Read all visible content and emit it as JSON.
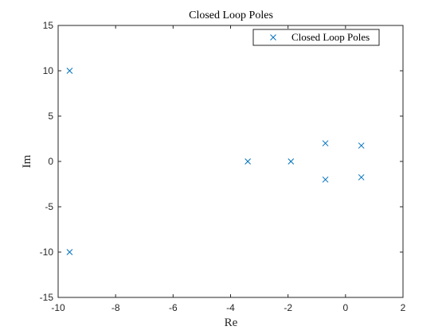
{
  "chart_data": {
    "type": "scatter",
    "title": "Closed Loop Poles",
    "xlabel": "Re",
    "ylabel": "Im",
    "xlim": [
      -10,
      2
    ],
    "ylim": [
      -15,
      15
    ],
    "xticks": [
      -10,
      -8,
      -6,
      -4,
      -2,
      0,
      2
    ],
    "yticks": [
      -15,
      -10,
      -5,
      0,
      5,
      10,
      15
    ],
    "xtick_labels": [
      "-10",
      "-8",
      "-6",
      "-4",
      "-2",
      "0",
      "2"
    ],
    "ytick_labels": [
      "-15",
      "-10",
      "-5",
      "0",
      "5",
      "10",
      "15"
    ],
    "grid": false,
    "legend_position": "top-right",
    "marker": "x",
    "series": [
      {
        "name": "Closed Loop Poles",
        "color": "#0072BD",
        "points": [
          {
            "x": -9.6,
            "y": 10
          },
          {
            "x": -9.6,
            "y": -10
          },
          {
            "x": -3.4,
            "y": 0
          },
          {
            "x": -1.9,
            "y": 0
          },
          {
            "x": -0.7,
            "y": 2
          },
          {
            "x": -0.7,
            "y": -2
          },
          {
            "x": 0.55,
            "y": 1.75
          },
          {
            "x": 0.55,
            "y": -1.75
          }
        ]
      }
    ]
  }
}
